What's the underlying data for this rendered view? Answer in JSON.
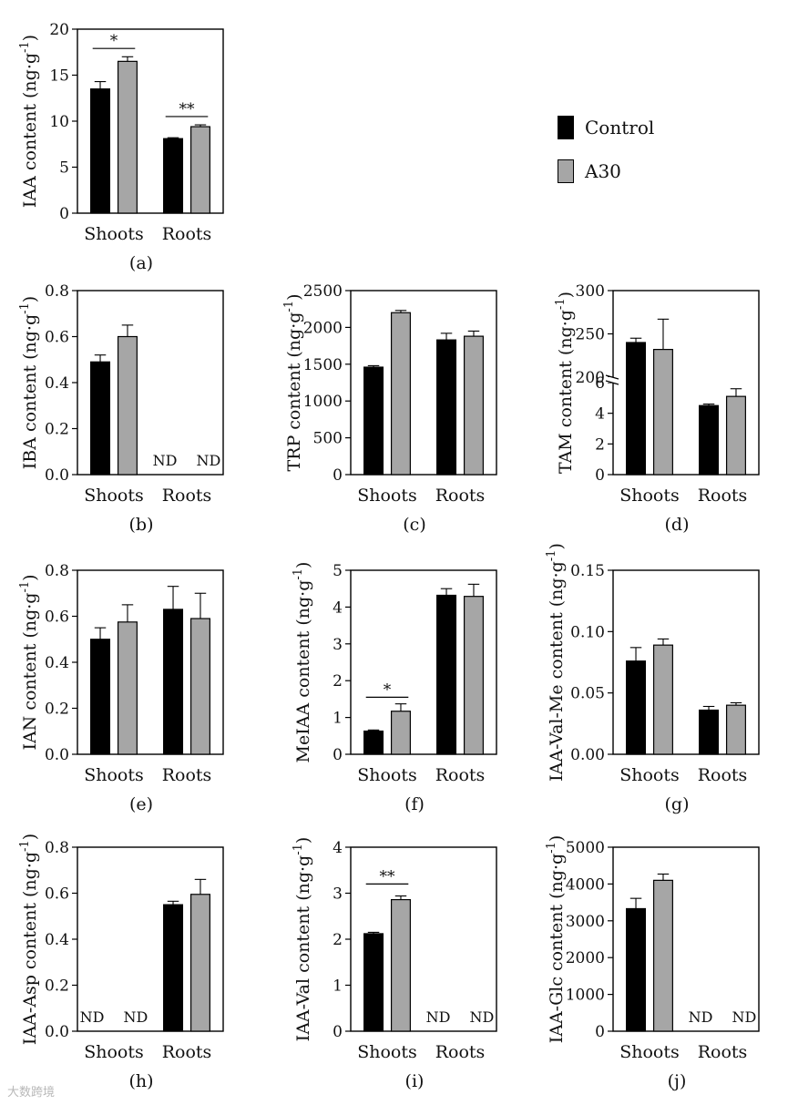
{
  "legend": {
    "items": [
      {
        "label": "Control",
        "color": "#000000"
      },
      {
        "label": "A30",
        "color": "#a6a6a6"
      }
    ]
  },
  "watermark": "大数跨境",
  "chart_data": [
    {
      "id": "a",
      "type": "bar",
      "panel_label": "(a)",
      "ylabel": "IAA content (ng·g",
      "ylabel_sup": "-1",
      "ylabel_close": ")",
      "categories": [
        "Shoots",
        "Roots"
      ],
      "ylim": [
        0,
        20
      ],
      "yticks": [
        "0",
        "5",
        "10",
        "15",
        "20"
      ],
      "series": [
        {
          "name": "Control",
          "values": [
            13.5,
            8.1
          ],
          "errors": [
            0.8,
            0.1
          ]
        },
        {
          "name": "A30",
          "values": [
            16.5,
            9.4
          ],
          "errors": [
            0.5,
            0.2
          ]
        }
      ],
      "annotations": [
        {
          "category": 0,
          "text": "*",
          "value": 17.9
        },
        {
          "category": 1,
          "text": "**",
          "value": 10.5
        }
      ],
      "nd": []
    },
    {
      "id": "b",
      "type": "bar",
      "panel_label": "(b)",
      "ylabel": "IBA content (ng·g",
      "ylabel_sup": "-1",
      "ylabel_close": ")",
      "categories": [
        "Shoots",
        "Roots"
      ],
      "ylim": [
        0,
        0.8
      ],
      "yticks": [
        "0.0",
        "0.2",
        "0.4",
        "0.6",
        "0.8"
      ],
      "series": [
        {
          "name": "Control",
          "values": [
            0.49,
            null
          ],
          "errors": [
            0.03,
            null
          ]
        },
        {
          "name": "A30",
          "values": [
            0.6,
            null
          ],
          "errors": [
            0.05,
            null
          ]
        }
      ],
      "annotations": [],
      "nd": [
        {
          "category": 1,
          "series": 0,
          "text": "ND"
        },
        {
          "category": 1,
          "series": 1,
          "text": "ND"
        }
      ]
    },
    {
      "id": "c",
      "type": "bar",
      "panel_label": "(c)",
      "ylabel": "TRP content (ng·g",
      "ylabel_sup": "-1",
      "ylabel_close": ")",
      "categories": [
        "Shoots",
        "Roots"
      ],
      "ylim": [
        0,
        2500
      ],
      "yticks": [
        "0",
        "500",
        "1000",
        "1500",
        "2000",
        "2500"
      ],
      "series": [
        {
          "name": "Control",
          "values": [
            1460,
            1830
          ],
          "errors": [
            20,
            90
          ]
        },
        {
          "name": "A30",
          "values": [
            2200,
            1880
          ],
          "errors": [
            30,
            70
          ]
        }
      ],
      "annotations": [],
      "nd": []
    },
    {
      "id": "d",
      "type": "bar",
      "panel_label": "(d)",
      "ylabel": "TAM content (ng·g",
      "ylabel_sup": "-1",
      "ylabel_close": ")",
      "categories": [
        "Shoots",
        "Roots"
      ],
      "broken_axis": true,
      "lower_ylim": [
        0,
        6
      ],
      "upper_ylim": [
        200,
        300
      ],
      "yticks_lower": [
        "0",
        "2",
        "4",
        "6"
      ],
      "yticks_upper": [
        "200",
        "250",
        "300"
      ],
      "series": [
        {
          "name": "Control",
          "values": [
            240,
            4.5
          ],
          "errors": [
            5,
            0.1
          ]
        },
        {
          "name": "A30",
          "values": [
            232,
            5.1
          ],
          "errors": [
            35,
            0.5
          ]
        }
      ],
      "annotations": [],
      "nd": []
    },
    {
      "id": "e",
      "type": "bar",
      "panel_label": "(e)",
      "ylabel": "IAN content (ng·g",
      "ylabel_sup": "-1",
      "ylabel_close": ")",
      "categories": [
        "Shoots",
        "Roots"
      ],
      "ylim": [
        0,
        0.8
      ],
      "yticks": [
        "0.0",
        "0.2",
        "0.4",
        "0.6",
        "0.8"
      ],
      "series": [
        {
          "name": "Control",
          "values": [
            0.5,
            0.63
          ],
          "errors": [
            0.05,
            0.1
          ]
        },
        {
          "name": "A30",
          "values": [
            0.575,
            0.59
          ],
          "errors": [
            0.075,
            0.11
          ]
        }
      ],
      "annotations": [],
      "nd": []
    },
    {
      "id": "f",
      "type": "bar",
      "panel_label": "(f)",
      "ylabel": "MeIAA content (ng·g",
      "ylabel_sup": "-1",
      "ylabel_close": ")",
      "categories": [
        "Shoots",
        "Roots"
      ],
      "ylim": [
        0,
        5
      ],
      "yticks": [
        "0",
        "1",
        "2",
        "3",
        "4",
        "5"
      ],
      "series": [
        {
          "name": "Control",
          "values": [
            0.63,
            4.32
          ],
          "errors": [
            0.03,
            0.18
          ]
        },
        {
          "name": "A30",
          "values": [
            1.17,
            4.29
          ],
          "errors": [
            0.2,
            0.33
          ]
        }
      ],
      "annotations": [
        {
          "category": 0,
          "text": "*",
          "value": 1.55
        }
      ],
      "nd": []
    },
    {
      "id": "g",
      "type": "bar",
      "panel_label": "(g)",
      "ylabel": "IAA-Val-Me content (ng·g",
      "ylabel_sup": "-1",
      "ylabel_close": ")",
      "categories": [
        "Shoots",
        "Roots"
      ],
      "ylim": [
        0,
        0.15
      ],
      "yticks": [
        "0.00",
        "0.05",
        "0.10",
        "0.15"
      ],
      "series": [
        {
          "name": "Control",
          "values": [
            0.076,
            0.036
          ],
          "errors": [
            0.011,
            0.003
          ]
        },
        {
          "name": "A30",
          "values": [
            0.089,
            0.04
          ],
          "errors": [
            0.005,
            0.002
          ]
        }
      ],
      "annotations": [],
      "nd": []
    },
    {
      "id": "h",
      "type": "bar",
      "panel_label": "(h)",
      "ylabel": "IAA-Asp content (ng·g",
      "ylabel_sup": "-1",
      "ylabel_close": ")",
      "categories": [
        "Shoots",
        "Roots"
      ],
      "ylim": [
        0,
        0.8
      ],
      "yticks": [
        "0.0",
        "0.2",
        "0.4",
        "0.6",
        "0.8"
      ],
      "series": [
        {
          "name": "Control",
          "values": [
            null,
            0.55
          ],
          "errors": [
            null,
            0.015
          ]
        },
        {
          "name": "A30",
          "values": [
            null,
            0.595
          ],
          "errors": [
            null,
            0.065
          ]
        }
      ],
      "annotations": [],
      "nd": [
        {
          "category": 0,
          "series": 0,
          "text": "ND"
        },
        {
          "category": 0,
          "series": 1,
          "text": "ND"
        }
      ]
    },
    {
      "id": "i",
      "type": "bar",
      "panel_label": "(i)",
      "ylabel": "IAA-Val content (ng·g",
      "ylabel_sup": "-1",
      "ylabel_close": ")",
      "categories": [
        "Shoots",
        "Roots"
      ],
      "ylim": [
        0,
        4
      ],
      "yticks": [
        "0",
        "1",
        "2",
        "3",
        "4"
      ],
      "series": [
        {
          "name": "Control",
          "values": [
            2.12,
            null
          ],
          "errors": [
            0.03,
            null
          ]
        },
        {
          "name": "A30",
          "values": [
            2.86,
            null
          ],
          "errors": [
            0.08,
            null
          ]
        }
      ],
      "annotations": [
        {
          "category": 0,
          "text": "**",
          "value": 3.2
        }
      ],
      "nd": [
        {
          "category": 1,
          "series": 0,
          "text": "ND"
        },
        {
          "category": 1,
          "series": 1,
          "text": "ND"
        }
      ]
    },
    {
      "id": "j",
      "type": "bar",
      "panel_label": "(j)",
      "ylabel": "IAA-Glc content (ng·g",
      "ylabel_sup": "-1",
      "ylabel_close": ")",
      "categories": [
        "Shoots",
        "Roots"
      ],
      "ylim": [
        0,
        5000
      ],
      "yticks": [
        "0",
        "1000",
        "2000",
        "3000",
        "4000",
        "5000"
      ],
      "series": [
        {
          "name": "Control",
          "values": [
            3330,
            null
          ],
          "errors": [
            280,
            null
          ]
        },
        {
          "name": "A30",
          "values": [
            4100,
            null
          ],
          "errors": [
            170,
            null
          ]
        }
      ],
      "annotations": [],
      "nd": [
        {
          "category": 1,
          "series": 0,
          "text": "ND"
        },
        {
          "category": 1,
          "series": 1,
          "text": "ND"
        }
      ]
    }
  ]
}
